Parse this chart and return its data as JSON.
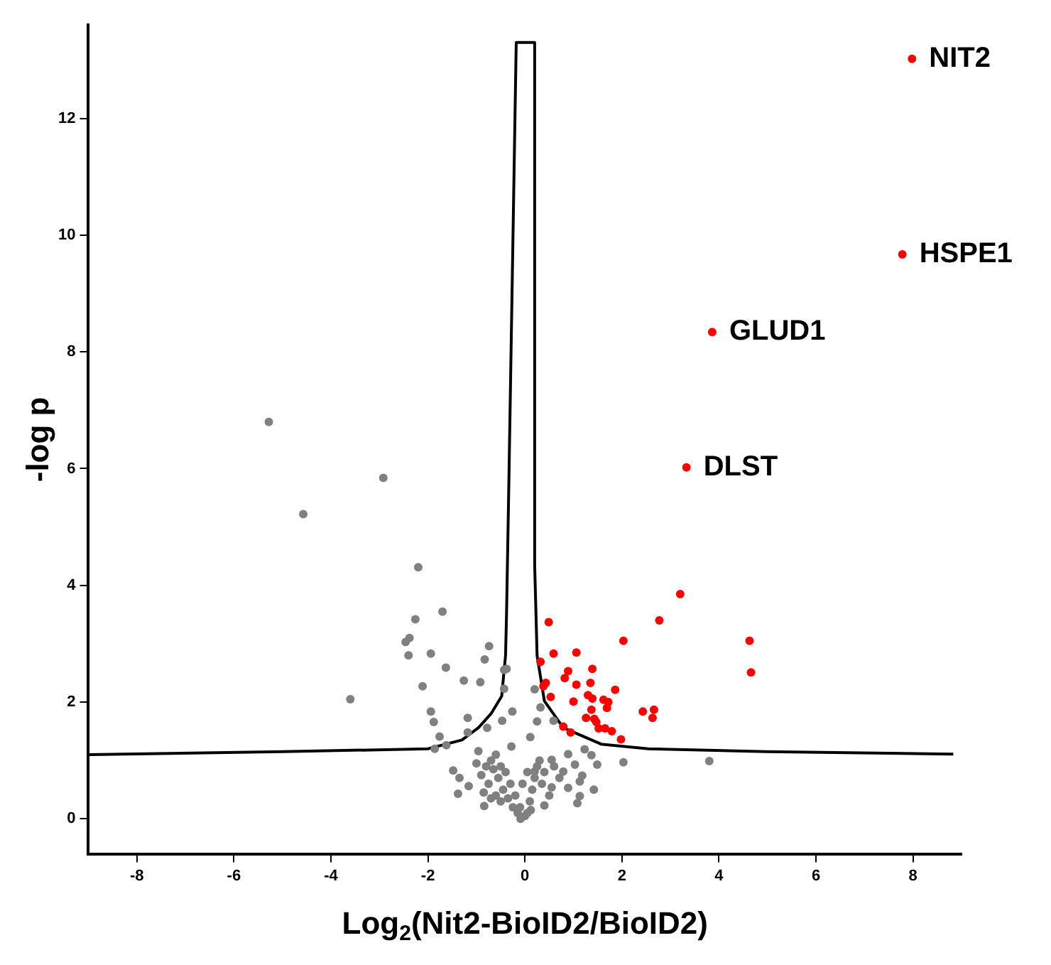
{
  "chart_data": {
    "type": "scatter",
    "xlabel": "Log$_{2}$(Nit2-BioID2/BioID2)",
    "ylabel": "-log p",
    "xlim": [
      -9,
      9
    ],
    "ylim": [
      -0.6,
      13.6
    ],
    "xticks": [
      -8,
      -6,
      -4,
      -2,
      0,
      2,
      4,
      6,
      8
    ],
    "yticks": [
      0,
      2,
      4,
      6,
      8,
      10,
      12
    ],
    "annotations": [
      {
        "text": "NIT2",
        "x": 7.98,
        "y": 13.02
      },
      {
        "text": "HSPE1",
        "x": 7.78,
        "y": 9.67
      },
      {
        "text": "GLUD1",
        "x": 3.86,
        "y": 8.34
      },
      {
        "text": "DLST",
        "x": 3.33,
        "y": 6.02
      }
    ],
    "series": [
      {
        "type": "scatter",
        "marker": "circle",
        "color": "#808080",
        "x": [
          -5.28,
          -2.92,
          -4.57,
          -2.2,
          -1.7,
          -2.26,
          -2.38,
          -2.46,
          -0.74,
          -2.4,
          -1.94,
          -0.83,
          -1.63,
          -0.43,
          -1.26,
          -0.92,
          -2.11,
          -0.43,
          -3.6,
          -1.94,
          -1.18,
          -1.88,
          -0.26,
          -0.47,
          -0.78,
          -1.18,
          -1.76,
          -1.62,
          -1.86,
          -1.48,
          -1.35,
          -1.38,
          -1.16,
          -0.84,
          -0.96,
          -0.09,
          0.2,
          0.32,
          0.59,
          -0.38,
          0.89,
          1.23,
          1.37,
          2.03,
          3.8,
          0.55,
          0.79,
          1.03,
          1.18,
          1.49,
          1.42,
          1.13,
          1.13,
          1.08,
          0.71,
          0.55,
          0.4,
          0.89,
          0.2,
          -0.28,
          0.11,
          0.25,
          -0.7,
          -0.6,
          -0.5,
          -0.4,
          -0.3,
          -0.2,
          -0.1,
          0,
          0.05,
          0.1,
          0.15,
          0.2,
          0.25,
          -0.55,
          -0.45,
          -0.35,
          -0.25,
          -0.65,
          -0.75,
          -0.6,
          -0.5,
          -0.8,
          0.3,
          0.35,
          -0.9,
          -0.7,
          0.12,
          -0.15,
          0.4,
          -1.0,
          -0.85,
          0.5,
          0.6,
          -0.05,
          0.05
        ],
        "values": [
          6.8,
          5.84,
          5.22,
          4.31,
          3.55,
          3.42,
          3.1,
          3.03,
          2.96,
          2.8,
          2.83,
          2.73,
          2.59,
          2.55,
          2.37,
          2.34,
          2.27,
          2.23,
          2.05,
          1.84,
          1.73,
          1.66,
          1.84,
          1.68,
          1.56,
          1.48,
          1.41,
          1.26,
          1.2,
          0.83,
          0.7,
          0.43,
          0.56,
          0.22,
          1.16,
          0.0,
          2.22,
          1.91,
          1.68,
          2.57,
          1.11,
          1.19,
          1.09,
          0.97,
          0.99,
          1.01,
          0.81,
          0.93,
          0.74,
          0.93,
          0.5,
          0.64,
          0.39,
          0.27,
          0.7,
          0.54,
          0.23,
          0.53,
          0.81,
          1.24,
          1.4,
          1.67,
          1.0,
          1.1,
          0.9,
          0.8,
          0.6,
          0.4,
          0.2,
          0.05,
          0.1,
          0.3,
          0.5,
          0.7,
          0.9,
          0.7,
          0.5,
          0.35,
          0.2,
          0.85,
          0.6,
          0.4,
          0.3,
          0.9,
          1.0,
          0.6,
          0.75,
          0.35,
          0.15,
          0.1,
          0.8,
          0.95,
          0.45,
          0.4,
          0.9,
          0.6,
          0.8
        ]
      },
      {
        "type": "scatter",
        "marker": "circle",
        "color": "#ff0000",
        "x": [
          7.98,
          7.78,
          3.86,
          3.33,
          3.2,
          0.49,
          2.77,
          2.03,
          4.63,
          0.59,
          1.06,
          0.32,
          0.89,
          1.39,
          4.66,
          0.82,
          0.43,
          1.06,
          1.35,
          0.38,
          1.86,
          1.3,
          0.53,
          1.39,
          1.62,
          1.72,
          1.0,
          1.69,
          1.37,
          2.43,
          2.66,
          2.63,
          1.26,
          1.43,
          1.47,
          0.79,
          1.52,
          1.65,
          1.79,
          0.94,
          1.98
        ],
        "values": [
          13.02,
          9.67,
          8.34,
          6.02,
          3.85,
          3.37,
          3.4,
          3.05,
          3.05,
          2.83,
          2.85,
          2.69,
          2.53,
          2.57,
          2.51,
          2.41,
          2.33,
          2.3,
          2.33,
          2.27,
          2.21,
          2.12,
          2.09,
          2.06,
          2.04,
          2.0,
          2.01,
          1.9,
          1.87,
          1.84,
          1.87,
          1.73,
          1.73,
          1.71,
          1.66,
          1.58,
          1.55,
          1.55,
          1.5,
          1.48,
          1.36
        ]
      },
      {
        "type": "line",
        "marker": "none",
        "line_style": "solid",
        "color": "#000000",
        "x": [
          -9,
          -5,
          -2,
          -1.3,
          -0.96,
          -0.7,
          -0.48,
          -0.4,
          -0.38,
          -0.33,
          -0.18,
          0.2,
          0.2,
          0.25,
          0.4,
          0.79,
          1.57,
          2.54,
          4.97,
          8.83
        ],
        "values": [
          1.1,
          1.15,
          1.2,
          1.35,
          1.56,
          1.8,
          2.1,
          2.8,
          3.5,
          5.84,
          13.3,
          13.3,
          4.36,
          2.8,
          2.02,
          1.56,
          1.28,
          1.2,
          1.15,
          1.11
        ]
      }
    ]
  }
}
